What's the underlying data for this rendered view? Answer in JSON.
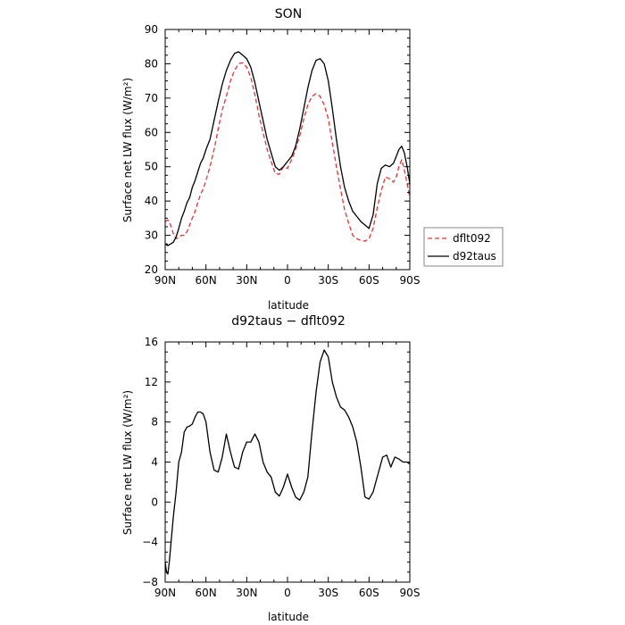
{
  "chart_data": [
    {
      "type": "line",
      "title": "SON",
      "xlabel": "latitude",
      "ylabel": "Surface net LW flux (W/m²)",
      "xlim": [
        90,
        -90
      ],
      "ylim": [
        20,
        90
      ],
      "x_ticks": [
        90,
        60,
        30,
        0,
        -30,
        -60,
        -90
      ],
      "x_tick_labels": [
        "90N",
        "60N",
        "30N",
        "0",
        "30S",
        "60S",
        "90S"
      ],
      "y_ticks": [
        20,
        30,
        40,
        50,
        60,
        70,
        80,
        90
      ],
      "y_tick_labels": [
        "20",
        "30",
        "40",
        "50",
        "60",
        "70",
        "80",
        "90"
      ],
      "grid": false,
      "legend_position": "right",
      "series": [
        {
          "name": "dflt092",
          "color": "#e8312f",
          "dash": "dashed",
          "x": [
            90,
            88,
            86,
            84,
            82,
            80,
            78,
            76,
            74,
            72,
            70,
            68,
            66,
            64,
            62,
            60,
            57,
            54,
            51,
            48,
            45,
            42,
            39,
            36,
            33,
            30,
            27,
            24,
            21,
            18,
            15,
            12,
            9,
            6,
            3,
            0,
            -3,
            -6,
            -9,
            -12,
            -15,
            -18,
            -21,
            -24,
            -27,
            -30,
            -33,
            -36,
            -39,
            -42,
            -45,
            -48,
            -51,
            -54,
            -57,
            -60,
            -63,
            -66,
            -69,
            -72,
            -75,
            -78,
            -80,
            -82,
            -84,
            -86,
            -88,
            -90
          ],
          "y": [
            34,
            34.5,
            33,
            30.5,
            29,
            29.5,
            30,
            30,
            31,
            33,
            35,
            37,
            39.5,
            42,
            43.5,
            46,
            50,
            55,
            61,
            66.5,
            70.5,
            75,
            78,
            80,
            80.3,
            79,
            76,
            71,
            65,
            60,
            55,
            51.5,
            48,
            47.8,
            50,
            49.5,
            52,
            55,
            59,
            64,
            68,
            70.5,
            71.3,
            70.5,
            68,
            64,
            57,
            50,
            43.5,
            37.5,
            33.5,
            30,
            29,
            28.5,
            28.3,
            29,
            32,
            38,
            43,
            47,
            46.5,
            45.5,
            47,
            50,
            52,
            49,
            45,
            41
          ]
        },
        {
          "name": "d92taus",
          "color": "#000000",
          "dash": "solid",
          "x": [
            90,
            88,
            86,
            84,
            82,
            80,
            78,
            76,
            74,
            72,
            70,
            68,
            66,
            64,
            62,
            60,
            57,
            54,
            51,
            48,
            45,
            42,
            39,
            36,
            33,
            30,
            27,
            24,
            21,
            18,
            15,
            12,
            9,
            6,
            3,
            0,
            -3,
            -6,
            -9,
            -12,
            -15,
            -18,
            -21,
            -24,
            -27,
            -30,
            -33,
            -36,
            -39,
            -42,
            -45,
            -48,
            -51,
            -54,
            -57,
            -60,
            -63,
            -66,
            -69,
            -72,
            -75,
            -78,
            -80,
            -82,
            -84,
            -86,
            -88,
            -90
          ],
          "y": [
            27.5,
            27,
            27.5,
            28,
            29.5,
            32,
            35,
            37,
            39.5,
            41,
            44,
            46,
            48.5,
            51,
            52.5,
            55,
            58,
            63.5,
            69,
            74,
            78,
            81,
            83,
            83.5,
            82.5,
            81.5,
            79,
            74.5,
            69,
            63.5,
            58,
            54,
            50,
            49,
            50,
            51.5,
            53,
            56,
            61,
            67,
            73,
            78,
            81,
            81.5,
            80,
            75,
            67,
            58,
            50,
            44,
            40,
            37,
            35.5,
            34,
            33,
            32,
            36,
            45,
            49.5,
            50.5,
            50,
            51,
            53,
            55,
            56,
            54,
            50,
            45
          ]
        }
      ]
    },
    {
      "type": "line",
      "title": "d92taus − dflt092",
      "xlabel": "latitude",
      "ylabel": "Surface net LW flux (W/m²)",
      "xlim": [
        90,
        -90
      ],
      "ylim": [
        -8,
        16
      ],
      "x_ticks": [
        90,
        60,
        30,
        0,
        -30,
        -60,
        -90
      ],
      "x_tick_labels": [
        "90N",
        "60N",
        "30N",
        "0",
        "30S",
        "60S",
        "90S"
      ],
      "y_ticks": [
        -8,
        -4,
        0,
        4,
        8,
        12,
        16
      ],
      "y_tick_labels": [
        "−8",
        "−4",
        "0",
        "4",
        "8",
        "12",
        "16"
      ],
      "grid": false,
      "series": [
        {
          "color": "#000000",
          "dash": "solid",
          "x": [
            90,
            89,
            88,
            87,
            86,
            85,
            84,
            82,
            80,
            78,
            76,
            74,
            72,
            70,
            68,
            66,
            64,
            62,
            60,
            57,
            54,
            51,
            48,
            45,
            42,
            39,
            36,
            33,
            30,
            27,
            24,
            21,
            18,
            15,
            12,
            9,
            6,
            3,
            0,
            -3,
            -6,
            -9,
            -12,
            -15,
            -18,
            -21,
            -24,
            -27,
            -30,
            -33,
            -36,
            -39,
            -42,
            -45,
            -48,
            -51,
            -54,
            -57,
            -60,
            -63,
            -65,
            -67,
            -70,
            -73,
            -76,
            -79,
            -82,
            -85,
            -88,
            -90
          ],
          "y": [
            -6,
            -7,
            -7.2,
            -6,
            -4.5,
            -3,
            -1.5,
            1,
            4,
            5,
            7,
            7.5,
            7.6,
            7.8,
            8.5,
            9,
            9,
            8.8,
            8,
            5,
            3.2,
            3,
            4.5,
            6.8,
            5,
            3.5,
            3.3,
            5,
            6,
            6,
            6.8,
            6,
            4,
            3,
            2.5,
            1,
            0.6,
            1.5,
            2.8,
            1.5,
            0.5,
            0.2,
            1,
            2.5,
            7,
            11,
            14,
            15.2,
            14.5,
            12,
            10.5,
            9.5,
            9.2,
            8.5,
            7.5,
            6,
            3.5,
            0.5,
            0.3,
            1,
            2,
            3,
            4.5,
            4.7,
            3.5,
            4.5,
            4.3,
            4,
            4,
            3.8
          ]
        }
      ]
    }
  ]
}
